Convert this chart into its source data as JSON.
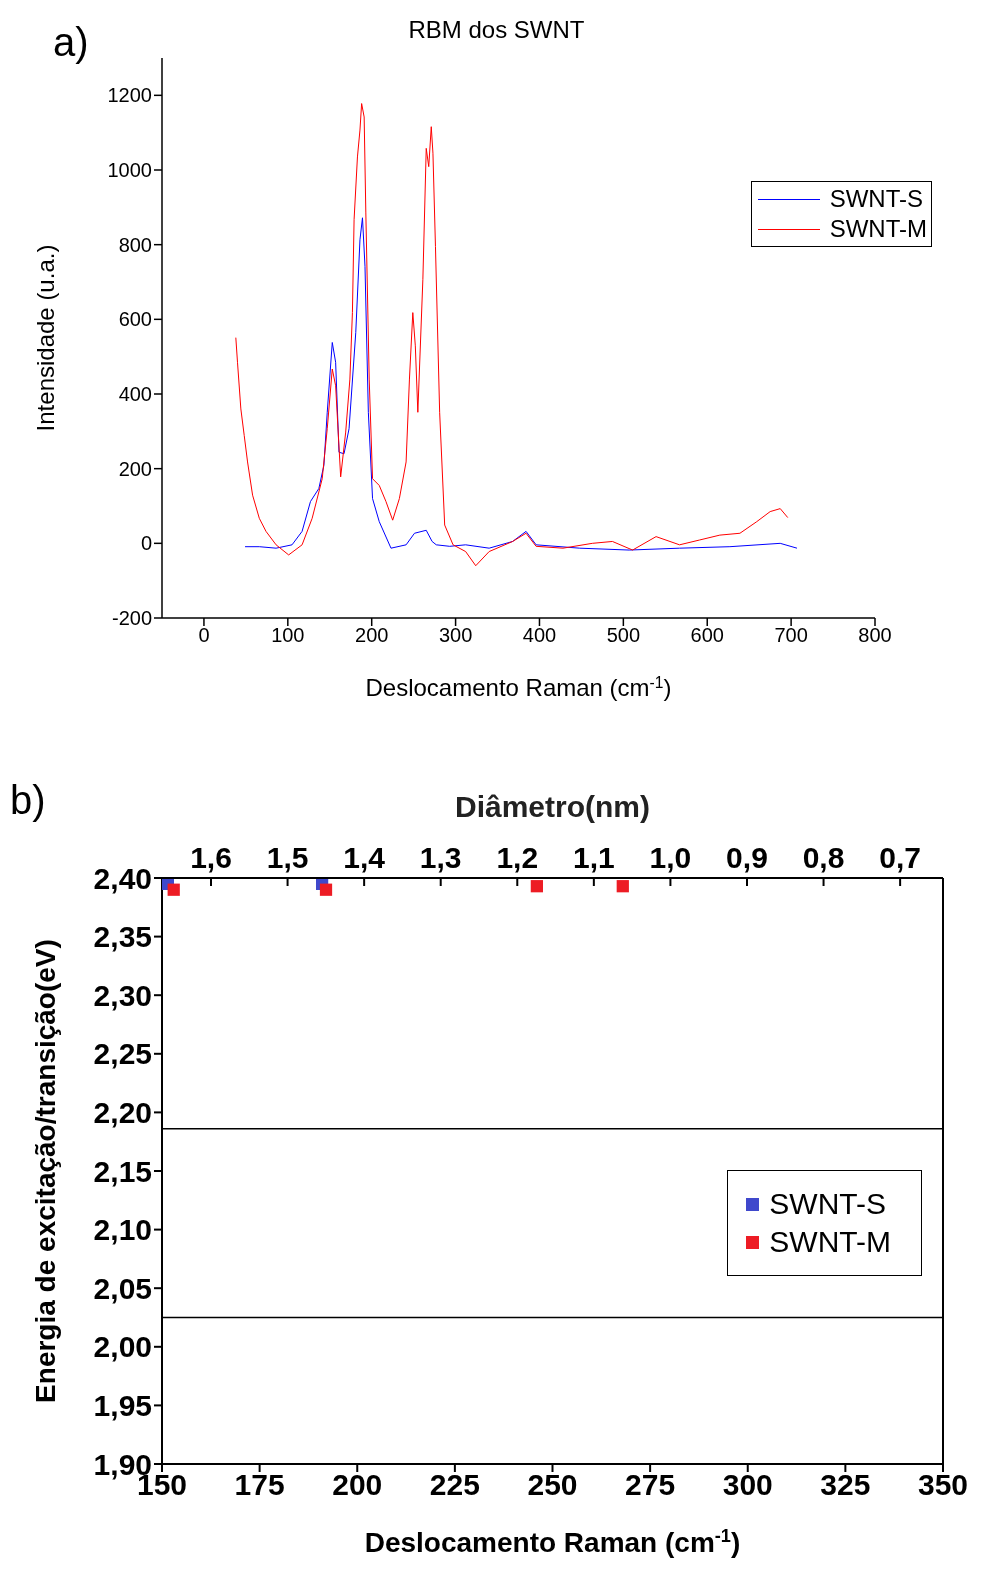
{
  "chart_data": [
    {
      "type": "line",
      "title": "RBM dos SWNT",
      "xlabel": "Deslocamento Raman (cm$^{-1}$)",
      "ylabel": "Intensidade (u.a.)",
      "annotations": [
        "a)"
      ],
      "xlim": [
        -50,
        800
      ],
      "xticks": [
        0,
        100,
        200,
        300,
        400,
        500,
        600,
        700,
        800
      ],
      "ylim": [
        -200,
        1300
      ],
      "yticks": [
        -200,
        0,
        200,
        400,
        600,
        800,
        1000,
        1200
      ],
      "legend": "top right",
      "series": [
        {
          "name": "SWNT-S",
          "color": "#0000ff",
          "x": [
            49,
            66,
            86,
            105,
            117,
            127,
            137,
            143,
            147,
            153,
            157,
            161,
            167,
            173,
            181,
            186,
            189,
            192,
            196,
            201,
            209,
            223,
            241,
            251,
            265,
            272,
            277,
            293,
            312,
            340,
            368,
            384,
            396,
            448,
            507,
            567,
            627,
            687,
            707
          ],
          "values": [
            -9,
            -9,
            -13,
            -4,
            32,
            112,
            147,
            209,
            351,
            538,
            485,
            244,
            240,
            307,
            565,
            813,
            872,
            742,
            351,
            120,
            58,
            -13,
            -4,
            27,
            35,
            5,
            -4,
            -8,
            -4,
            -13,
            5,
            32,
            -4,
            -13,
            -18,
            -13,
            -9,
            0,
            -13
          ]
        },
        {
          "name": "SWNT-M",
          "color": "#ff0000",
          "x": [
            38,
            40,
            44,
            48,
            52,
            58,
            66,
            74,
            86,
            101,
            117,
            129,
            141,
            147,
            153,
            157,
            163,
            169,
            174,
            177,
            179,
            183,
            186,
            188,
            191,
            193,
            197,
            201,
            209,
            217,
            225,
            233,
            241,
            245,
            249,
            252,
            255,
            261,
            265,
            268,
            271,
            273,
            276,
            281,
            287,
            297,
            312,
            324,
            340,
            368,
            384,
            396,
            428,
            463,
            487,
            511,
            539,
            567,
            591,
            615,
            639,
            659,
            675,
            687,
            696
          ],
          "values": [
            551,
            485,
            360,
            289,
            218,
            129,
            67,
            32,
            -4,
            -31,
            -4,
            67,
            173,
            307,
            467,
            422,
            178,
            298,
            440,
            618,
            867,
            1035,
            1107,
            1178,
            1142,
            885,
            440,
            173,
            155,
            112,
            62,
            120,
            218,
            440,
            618,
            529,
            351,
            707,
            1058,
            1009,
            1116,
            1045,
            795,
            351,
            49,
            -4,
            -22,
            -60,
            -22,
            5,
            27,
            -8,
            -13,
            0,
            5,
            -18,
            18,
            -4,
            9,
            22,
            27,
            58,
            85,
            93,
            69
          ]
        }
      ]
    },
    {
      "type": "scatter",
      "xlabel": "Deslocamento Raman (cm$^{-1}$)",
      "ylabel": "Energia de excitação/transição(eV)",
      "x2label": "Diâmetro(nm)",
      "annotations": [
        "b)"
      ],
      "marker": "square",
      "legend": "right",
      "xlim": [
        150,
        350
      ],
      "xticks": [
        150,
        175,
        200,
        225,
        250,
        275,
        300,
        325,
        350
      ],
      "x2lim": [
        1.664,
        0.644
      ],
      "x2ticks": [
        {
          "value": 1.6,
          "label": "1,6"
        },
        {
          "value": 1.5,
          "label": "1,5"
        },
        {
          "value": 1.4,
          "label": "1,4"
        },
        {
          "value": 1.3,
          "label": "1,3"
        },
        {
          "value": 1.2,
          "label": "1,2"
        },
        {
          "value": 1.1,
          "label": "1,1"
        },
        {
          "value": 1.0,
          "label": "1,0"
        },
        {
          "value": 0.9,
          "label": "0,9"
        },
        {
          "value": 0.8,
          "label": "0,8"
        },
        {
          "value": 0.7,
          "label": "0,7"
        }
      ],
      "ylim": [
        1.9,
        2.4
      ],
      "yticks": [
        {
          "value": 1.9,
          "label": "1,90"
        },
        {
          "value": 1.95,
          "label": "1,95"
        },
        {
          "value": 2.0,
          "label": "2,00"
        },
        {
          "value": 2.05,
          "label": "2,05"
        },
        {
          "value": 2.1,
          "label": "2,10"
        },
        {
          "value": 2.15,
          "label": "2,15"
        },
        {
          "value": 2.2,
          "label": "2,20"
        },
        {
          "value": 2.25,
          "label": "2,25"
        },
        {
          "value": 2.3,
          "label": "2,30"
        },
        {
          "value": 2.35,
          "label": "2,35"
        },
        {
          "value": 2.4,
          "label": "2,40"
        }
      ],
      "ref_lines": [
        {
          "axis": "y",
          "value": 2.186,
          "color": "#000000"
        },
        {
          "axis": "y",
          "value": 2.025,
          "color": "#000000"
        }
      ],
      "series": [
        {
          "name": "SWNT-S",
          "color": "#3f48cc",
          "x": [
            151.5,
            191
          ],
          "values": [
            2.395,
            2.395
          ]
        },
        {
          "name": "SWNT-M",
          "color": "#ed1c24",
          "x": [
            153,
            192,
            246,
            268
          ],
          "values": [
            2.39,
            2.39,
            2.393,
            2.393
          ]
        }
      ]
    }
  ]
}
